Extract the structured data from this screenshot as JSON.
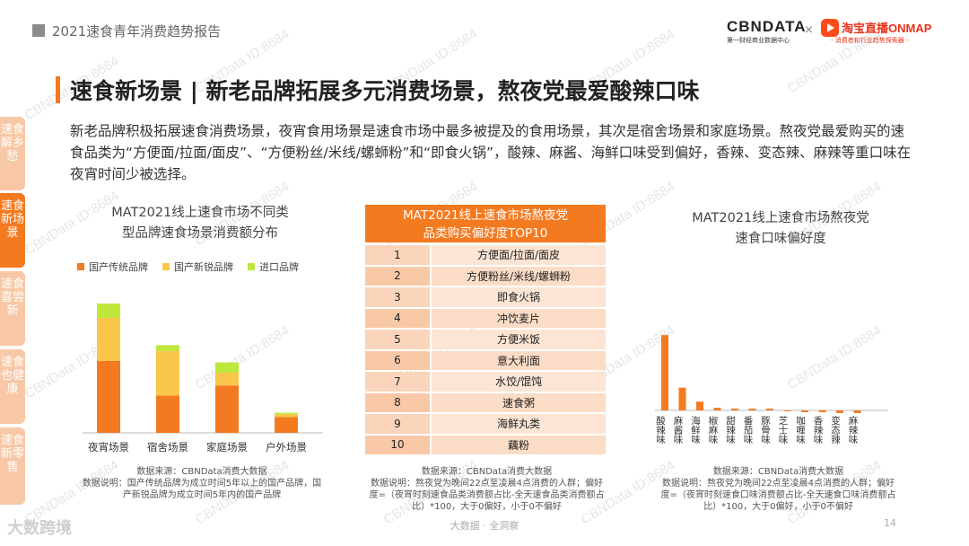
{
  "header": {
    "report_title": "2021速食青年消费趋势报告"
  },
  "logos": {
    "cbn_name": "CBNDATA",
    "cbn_sub": "第一财经商业数据中心",
    "cross": "×",
    "tb_name": "淘宝直播ONMAP",
    "tb_sub": "- 消费者和行业趋势探索器 -"
  },
  "watermark": "CBNData ID:8684",
  "page": {
    "title": "速食新场景 | 新老品牌拓展多元消费场景，熬夜党最爱酸辣口味",
    "intro": "新老品牌积极拓展速食消费场景，夜宵食用场景是速食市场中最多被提及的食用场景，其次是宿舍场景和家庭场景。熬夜党最爱购买的速食品类为“方便面/拉面/面皮”、“方便粉丝/米线/螺蛳粉”和“即食火锅”，酸辣、麻酱、海鲜口味受到偏好，香辣、变态辣、麻辣等重口味在夜宵时间少被选择。"
  },
  "sidebar": {
    "tabs": [
      {
        "label": "速食解乡愁",
        "color": "#f8c8a6"
      },
      {
        "label": "速食新场景",
        "color": "#f47a20"
      },
      {
        "label": "速食喜尝新",
        "color": "#f8c8a6"
      },
      {
        "label": "速食也健康",
        "color": "#f8c8a6"
      },
      {
        "label": "速食新零售",
        "color": "#f8c8a6"
      }
    ]
  },
  "chart_data": [
    {
      "type": "bar",
      "stacked": true,
      "title_line1": "MAT2021线上速食市场不同类",
      "title_line2": "型品牌速食场景消费额分布",
      "categories": [
        "夜宵场景",
        "宿舍场景",
        "家庭场景",
        "户外场景"
      ],
      "ylim": [
        0,
        100
      ],
      "legend_position": "top",
      "series": [
        {
          "name": "国产传统品牌",
          "color": "#f47a20",
          "values": [
            50,
            26,
            33,
            11
          ]
        },
        {
          "name": "国产新锐品牌",
          "color": "#fbc74a",
          "values": [
            30,
            31,
            9,
            2
          ]
        },
        {
          "name": "进口品牌",
          "color": "#bde83a",
          "values": [
            10,
            4,
            7,
            1
          ]
        }
      ],
      "source": "数据来源：CBNData消费大数据",
      "note_line1": "数据说明：国产传统品牌为成立时间5年以上的国产品牌，国",
      "note_line2": "产新锐品牌为成立时间5年内的国产品牌"
    },
    {
      "type": "table",
      "title_line1": "MAT2021线上速食市场熬夜党",
      "title_line2": "品类购买偏好度TOP10",
      "rows": [
        {
          "rank": "1",
          "name": "方便面/拉面/面皮"
        },
        {
          "rank": "2",
          "name": "方便粉丝/米线/螺蛳粉"
        },
        {
          "rank": "3",
          "name": "即食火锅"
        },
        {
          "rank": "4",
          "name": "冲饮麦片"
        },
        {
          "rank": "5",
          "name": "方便米饭"
        },
        {
          "rank": "6",
          "name": "意大利面"
        },
        {
          "rank": "7",
          "name": "水饺/馄饨"
        },
        {
          "rank": "8",
          "name": "速食粥"
        },
        {
          "rank": "9",
          "name": "海鲜丸类"
        },
        {
          "rank": "10",
          "name": "藕粉"
        }
      ],
      "source": "数据来源：CBNData消费大数据",
      "note_line1": "数据说明：熬夜党为晚间22点至凌晨4点消费的人群；偏好",
      "note_line2": "度=（夜宵时刻速食品类消费额占比-全天速食品类消费额占",
      "note_line3": "比）*100，大于0偏好，小于0不偏好"
    },
    {
      "type": "bar",
      "title_line1": "MAT2021线上速食市场熬夜党",
      "title_line2": "速食口味偏好度",
      "categories": [
        "酸辣味",
        "麻酱味",
        "海鲜味",
        "椒麻味",
        "甜辣味",
        "番茄味",
        "豚骨味",
        "芝士味",
        "咖喱味",
        "香辣味",
        "变态辣",
        "麻辣味"
      ],
      "values": [
        4.3,
        1.3,
        0.5,
        0.15,
        0.1,
        0.1,
        0.1,
        -0.05,
        -0.1,
        -0.1,
        -0.15,
        -0.15
      ],
      "color": "#f47a20",
      "ylim": [
        -0.5,
        5
      ],
      "source": "数据来源：CBNData消费大数据",
      "note_line1": "数据说明：熬夜党为晚间22点至凌晨4点消费的人群；偏好",
      "note_line2": "度=（夜宵时刻速食口味消费额占比-全天速食口味消费额占",
      "note_line3": "比）*100，大于0偏好，小于0不偏好"
    }
  ],
  "footer": {
    "brand": "大数跨境",
    "center": "大数据 · 全洞察",
    "page_number": "14"
  }
}
